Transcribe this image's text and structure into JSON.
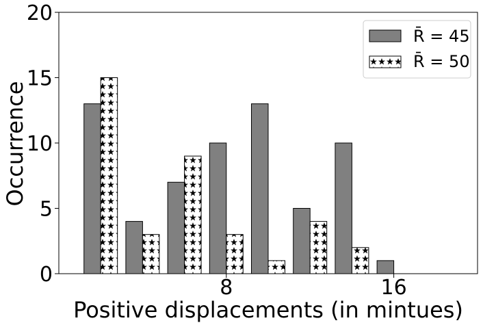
{
  "chart_data": {
    "type": "bar",
    "xlabel": "Positive displacements (in mintues)",
    "ylabel": "Occurrence",
    "ylim": [
      0,
      20
    ],
    "yticks": [
      0,
      5,
      10,
      15,
      20
    ],
    "xlim": [
      0,
      20
    ],
    "xticks": [
      8,
      16
    ],
    "x": [
      2,
      4,
      6,
      8,
      10,
      12,
      14,
      16
    ],
    "series": [
      {
        "name": "R̄ = 45",
        "values": [
          13,
          4,
          7,
          10,
          13,
          5,
          10,
          1
        ],
        "color": "#808080",
        "pattern": "solid"
      },
      {
        "name": "R̄ = 50",
        "values": [
          15,
          3,
          9,
          3,
          1,
          4,
          2,
          0
        ],
        "color": "#ffffff",
        "pattern": "stars"
      }
    ],
    "grid": false,
    "legend_position": "top-right"
  }
}
